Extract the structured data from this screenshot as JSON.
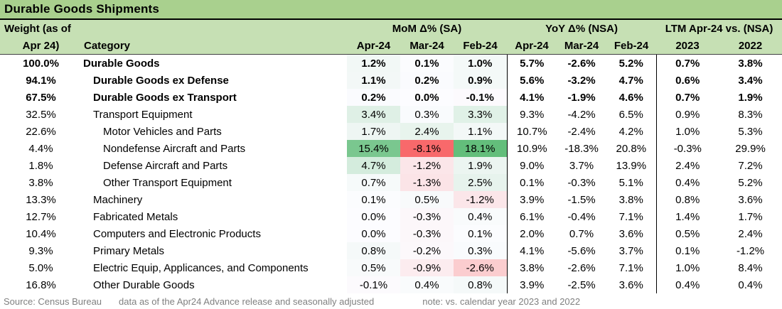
{
  "title": "Durable Goods Shipments",
  "header": {
    "weight_line1": "Weight (as of",
    "weight_line2": "Apr 24)",
    "category_label": "Category",
    "groups": [
      {
        "label": "MoM Δ% (SA)",
        "cols": [
          "Apr-24",
          "Mar-24",
          "Feb-24"
        ]
      },
      {
        "label": "YoY Δ% (NSA)",
        "cols": [
          "Apr-24",
          "Mar-24",
          "Feb-24"
        ]
      },
      {
        "label": "LTM Apr-24 vs. (NSA)",
        "cols": [
          "2023",
          "2022"
        ]
      }
    ]
  },
  "chart_data": {
    "type": "table",
    "title": "Durable Goods Shipments",
    "column_groups": [
      "MoM Δ% (SA)",
      "YoY Δ% (NSA)",
      "LTM Apr-24 vs. (NSA)"
    ],
    "columns": [
      "Weight (as of Apr 24)",
      "Category",
      "MoM Apr-24",
      "MoM Mar-24",
      "MoM Feb-24",
      "YoY Apr-24",
      "YoY Mar-24",
      "YoY Feb-24",
      "LTM vs 2023",
      "LTM vs 2022"
    ],
    "rows": [
      {
        "weight": "100.0%",
        "category": "Durable Goods",
        "bold": true,
        "indent": 0,
        "mom": [
          1.2,
          0.1,
          1.0
        ],
        "yoy": [
          5.7,
          -2.6,
          5.2
        ],
        "ltm": [
          0.7,
          3.8
        ]
      },
      {
        "weight": "94.1%",
        "category": "Durable Goods ex Defense",
        "bold": true,
        "indent": 1,
        "mom": [
          1.1,
          0.2,
          0.9
        ],
        "yoy": [
          5.6,
          -3.2,
          4.7
        ],
        "ltm": [
          0.6,
          3.4
        ]
      },
      {
        "weight": "67.5%",
        "category": "Durable Goods ex Transport",
        "bold": true,
        "indent": 1,
        "mom": [
          0.2,
          0.0,
          -0.1
        ],
        "yoy": [
          4.1,
          -1.9,
          4.6
        ],
        "ltm": [
          0.7,
          1.9
        ]
      },
      {
        "weight": "32.5%",
        "category": "Transport Equipment",
        "bold": false,
        "indent": 1,
        "mom": [
          3.4,
          0.3,
          3.3
        ],
        "yoy": [
          9.3,
          -4.2,
          6.5
        ],
        "ltm": [
          0.9,
          8.3
        ]
      },
      {
        "weight": "22.6%",
        "category": "Motor Vehicles and Parts",
        "bold": false,
        "indent": 2,
        "mom": [
          1.7,
          2.4,
          1.1
        ],
        "yoy": [
          10.7,
          -2.4,
          4.2
        ],
        "ltm": [
          1.0,
          5.3
        ]
      },
      {
        "weight": "4.4%",
        "category": "Nondefense Aircraft and Parts",
        "bold": false,
        "indent": 2,
        "mom": [
          15.4,
          -8.1,
          18.1
        ],
        "yoy": [
          10.9,
          -18.3,
          20.8
        ],
        "ltm": [
          -0.3,
          29.9
        ]
      },
      {
        "weight": "1.8%",
        "category": "Defense Aircraft and Parts",
        "bold": false,
        "indent": 2,
        "mom": [
          4.7,
          -1.2,
          1.9
        ],
        "yoy": [
          9.0,
          3.7,
          13.9
        ],
        "ltm": [
          2.4,
          7.2
        ]
      },
      {
        "weight": "3.8%",
        "category": "Other Transport Equipment",
        "bold": false,
        "indent": 2,
        "mom": [
          0.7,
          -1.3,
          2.5
        ],
        "yoy": [
          0.1,
          -0.3,
          5.1
        ],
        "ltm": [
          0.4,
          5.2
        ]
      },
      {
        "weight": "13.3%",
        "category": "Machinery",
        "bold": false,
        "indent": 1,
        "mom": [
          0.1,
          0.5,
          -1.2
        ],
        "yoy": [
          3.9,
          -1.5,
          3.8
        ],
        "ltm": [
          0.8,
          3.6
        ]
      },
      {
        "weight": "12.7%",
        "category": "Fabricated Metals",
        "bold": false,
        "indent": 1,
        "mom": [
          0.0,
          -0.3,
          0.4
        ],
        "yoy": [
          6.1,
          -0.4,
          7.1
        ],
        "ltm": [
          1.4,
          1.7
        ]
      },
      {
        "weight": "10.4%",
        "category": "Computers and Electronic Products",
        "bold": false,
        "indent": 1,
        "mom": [
          0.0,
          -0.3,
          0.1
        ],
        "yoy": [
          2.0,
          0.7,
          3.6
        ],
        "ltm": [
          0.5,
          2.4
        ]
      },
      {
        "weight": "9.3%",
        "category": "Primary Metals",
        "bold": false,
        "indent": 1,
        "mom": [
          0.8,
          -0.2,
          0.3
        ],
        "yoy": [
          4.1,
          -5.6,
          3.7
        ],
        "ltm": [
          0.1,
          -1.2
        ]
      },
      {
        "weight": "5.0%",
        "category": "Electric Equip, Applicances, and Components",
        "bold": false,
        "indent": 1,
        "mom": [
          0.5,
          -0.9,
          -2.6
        ],
        "yoy": [
          3.8,
          -2.6,
          7.1
        ],
        "ltm": [
          1.0,
          8.4
        ]
      },
      {
        "weight": "16.8%",
        "category": "Other Durable Goods",
        "bold": false,
        "indent": 1,
        "mom": [
          -0.1,
          0.4,
          0.8
        ],
        "yoy": [
          3.9,
          -2.5,
          3.6
        ],
        "ltm": [
          0.4,
          0.4
        ]
      }
    ],
    "heatmap": {
      "applies_to": "mom",
      "min": -8.1,
      "mid": 0,
      "max": 18.1,
      "min_color": "#F8696B",
      "mid_color": "#FCFCFF",
      "max_color": "#63BE7B"
    }
  },
  "footer": {
    "source": "Source: Census Bureau",
    "data_note": "data as of the Apr24 Advance release and seasonally adjusted",
    "note": "note: vs. calendar year 2023 and 2022"
  },
  "colors": {
    "title_bg": "#A9D08E",
    "header_bg": "#C6E0B4",
    "separator": "#000000",
    "footer_text": "#808080"
  }
}
